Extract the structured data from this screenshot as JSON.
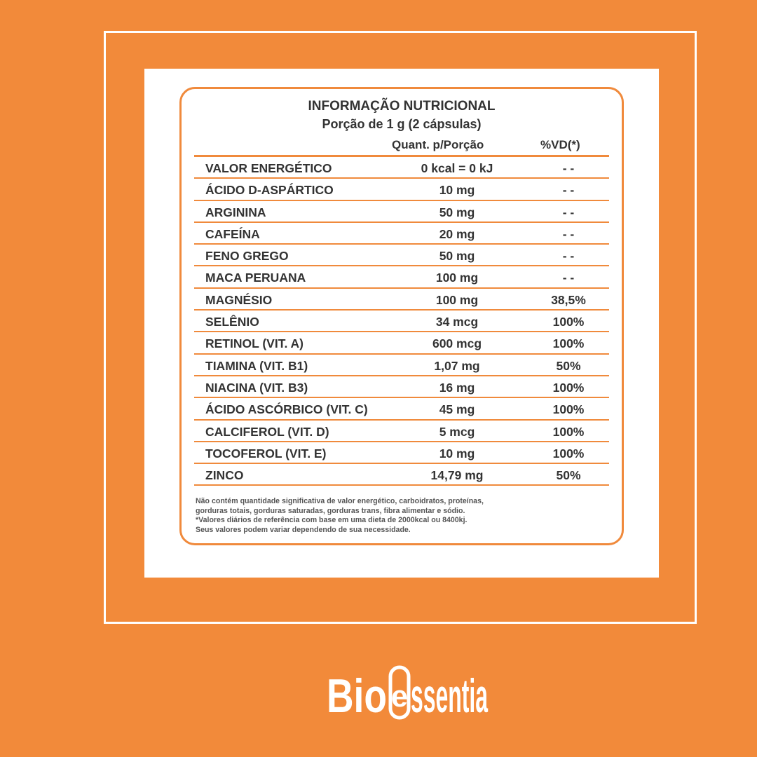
{
  "label": {
    "title": "INFORMAÇÃO NUTRICIONAL",
    "subtitle": "Porção de 1 g (2 cápsulas)",
    "col_qty": "Quant. p/Porção",
    "col_vd": "%VD(*)",
    "rows": [
      {
        "name": "VALOR ENERGÉTICO",
        "qty": "0 kcal = 0 kJ",
        "vd": "- -"
      },
      {
        "name": "ÁCIDO D-ASPÁRTICO",
        "qty": "10 mg",
        "vd": "- -"
      },
      {
        "name": "ARGININA",
        "qty": "50 mg",
        "vd": "- -"
      },
      {
        "name": "CAFEÍNA",
        "qty": "20 mg",
        "vd": "- -"
      },
      {
        "name": "FENO GREGO",
        "qty": "50 mg",
        "vd": "- -"
      },
      {
        "name": "MACA PERUANA",
        "qty": "100 mg",
        "vd": "- -"
      },
      {
        "name": "MAGNÉSIO",
        "qty": "100 mg",
        "vd": "38,5%"
      },
      {
        "name": "SELÊNIO",
        "qty": "34 mcg",
        "vd": "100%"
      },
      {
        "name": "RETINOL (VIT. A)",
        "qty": "600 mcg",
        "vd": "100%"
      },
      {
        "name": "TIAMINA (VIT. B1)",
        "qty": "1,07 mg",
        "vd": "50%"
      },
      {
        "name": "NIACINA (VIT. B3)",
        "qty": "16 mg",
        "vd": "100%"
      },
      {
        "name": "ÁCIDO ASCÓRBICO (VIT. C)",
        "qty": "45 mg",
        "vd": "100%"
      },
      {
        "name": "CALCIFEROL (VIT. D)",
        "qty": "5 mcg",
        "vd": "100%"
      },
      {
        "name": "TOCOFEROL (VIT. E)",
        "qty": "10 mg",
        "vd": "100%"
      },
      {
        "name": "ZINCO",
        "qty": "14,79 mg",
        "vd": "50%"
      }
    ],
    "footnote": [
      "Não contém quantidade significativa de valor energético, carboidratos, proteínas,",
      "gorduras totais, gorduras saturadas, gorduras trans, fibra alimentar e sódio.",
      "*Valores diários de referência com base em uma dieta de 2000kcal ou 8400kj.",
      "Seus valores podem variar dependendo de sua necessidade."
    ]
  },
  "brand": {
    "logo_text": "BioEssentia"
  },
  "colors": {
    "background": "#f28a3a",
    "accent": "#f08a3c",
    "frame": "#ffffff"
  }
}
